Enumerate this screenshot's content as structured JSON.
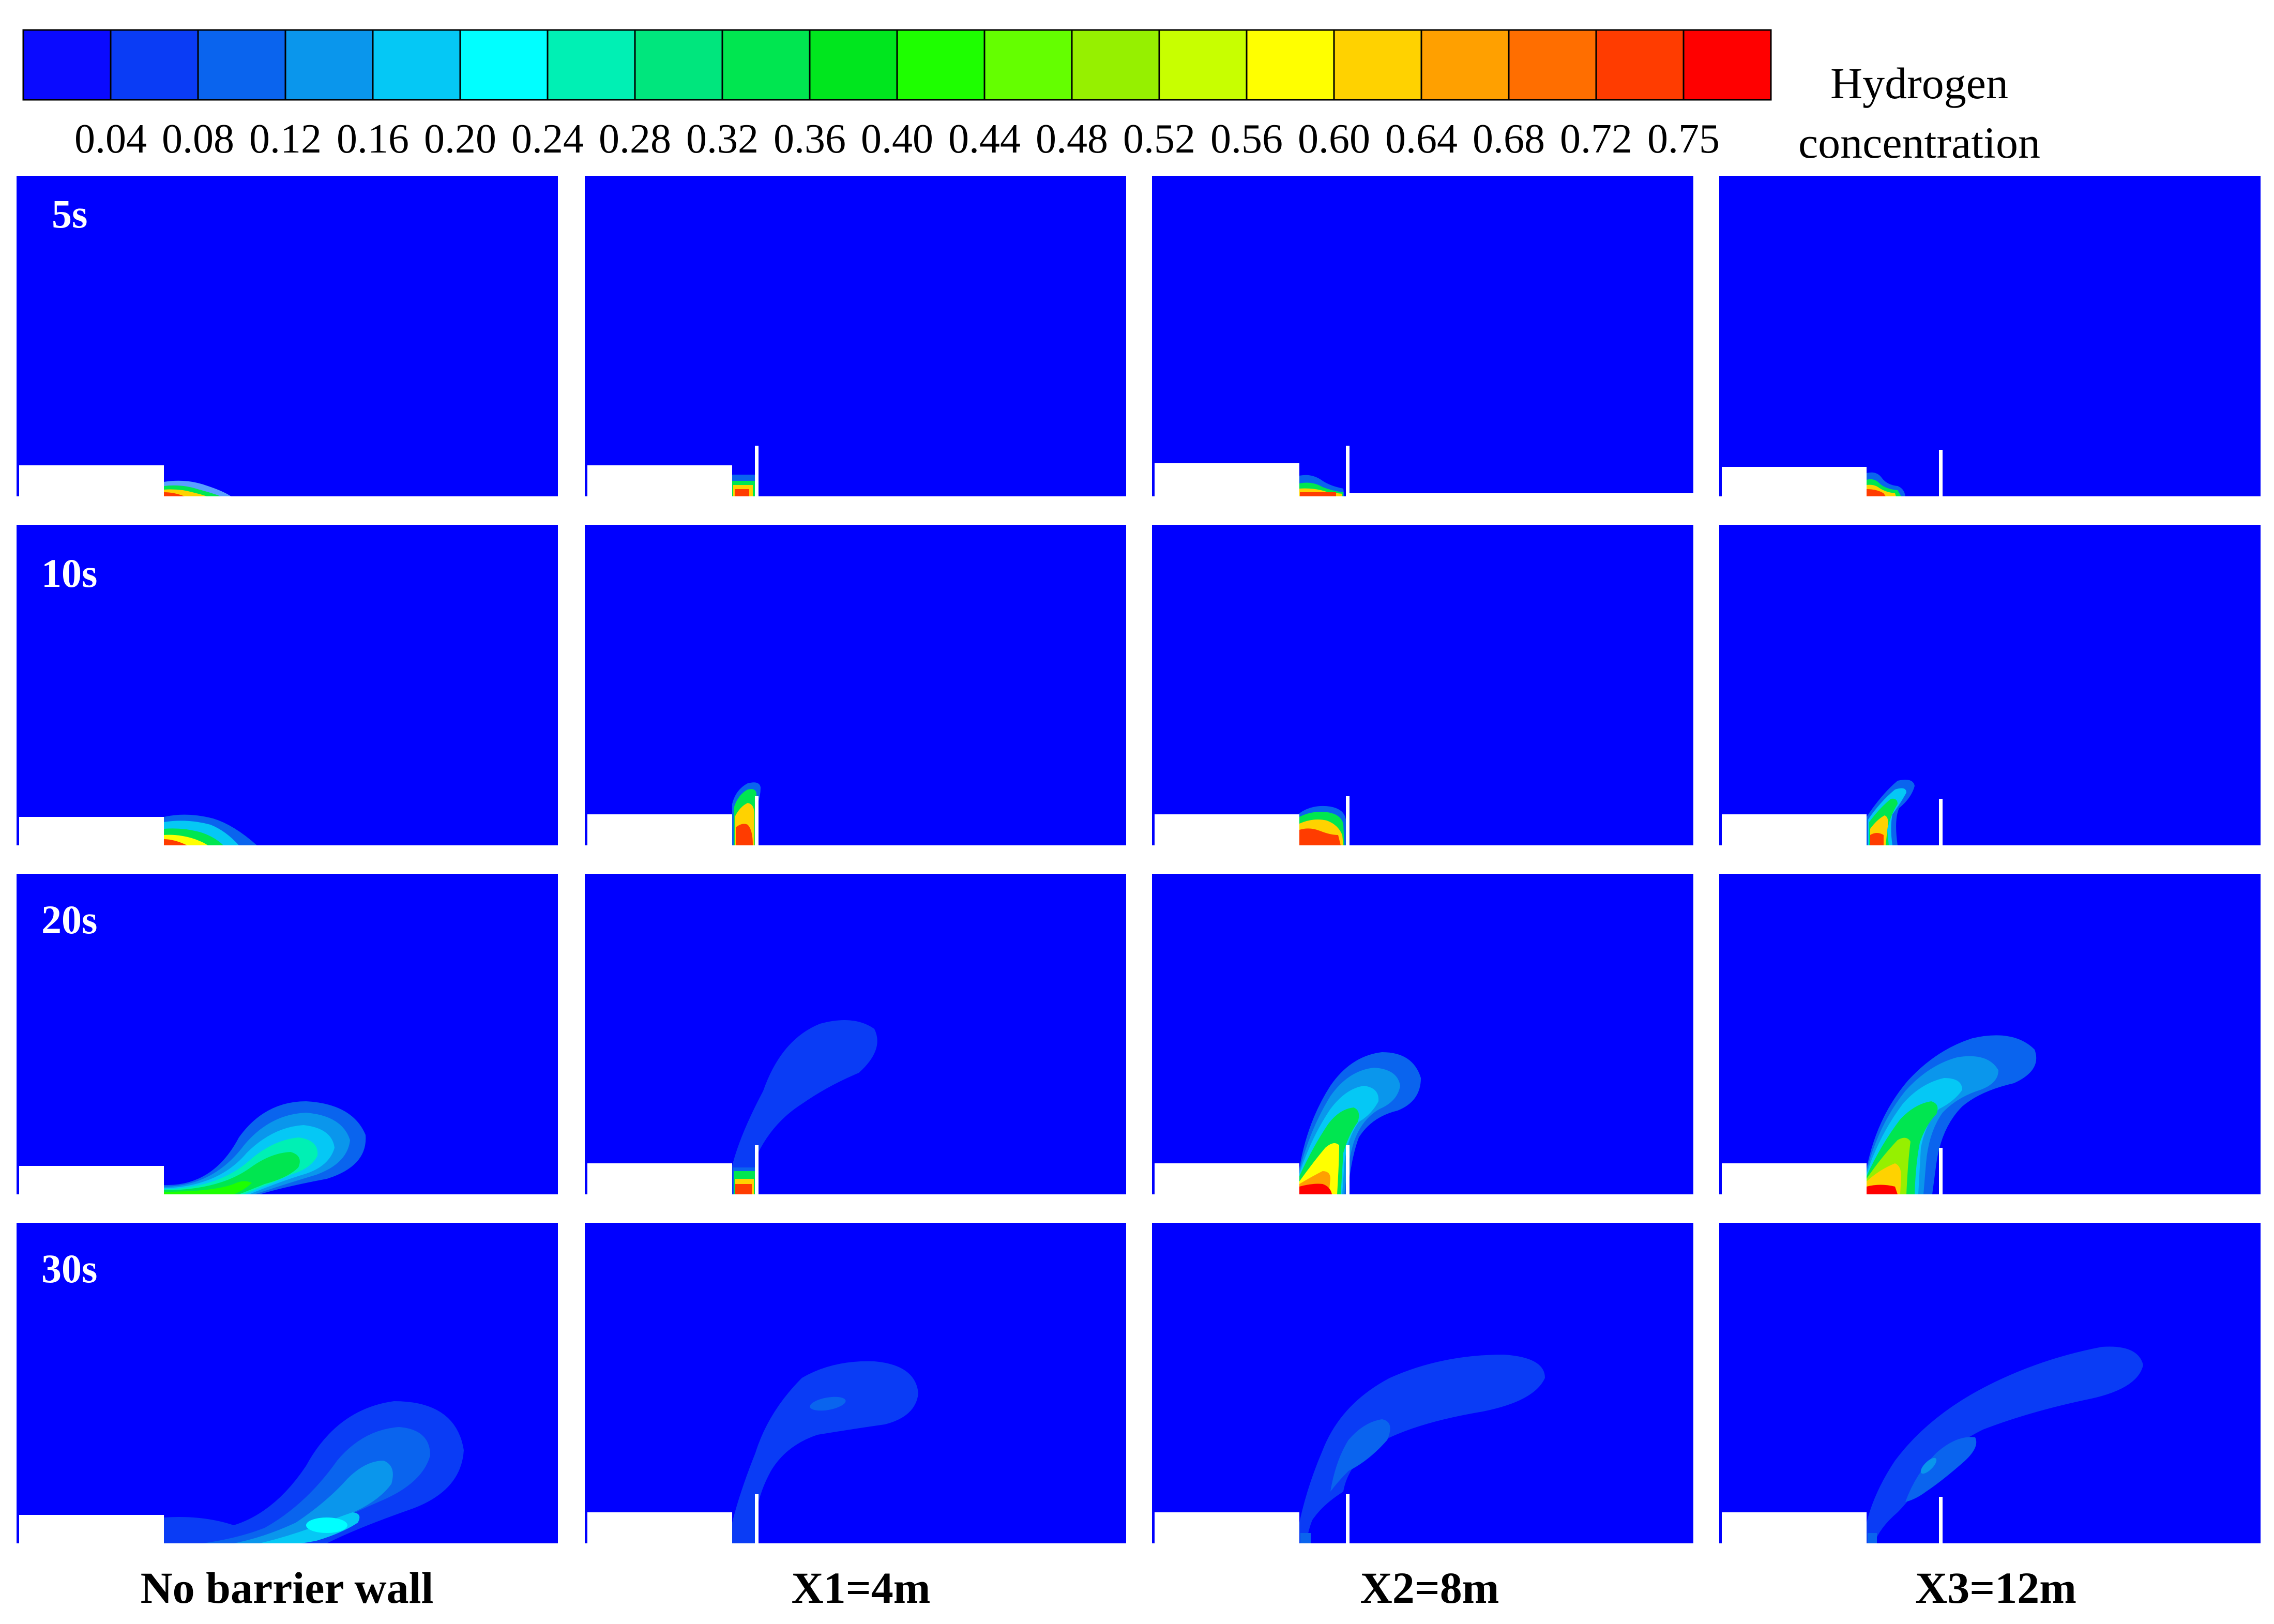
{
  "colorbar": {
    "title_line1": "Hydrogen",
    "title_line2": "concentration",
    "colors": [
      "#0a0aff",
      "#0a3cf5",
      "#0a64ee",
      "#0a96ec",
      "#05c8f5",
      "#00ffff",
      "#00f0b4",
      "#00e67d",
      "#00e650",
      "#00e61e",
      "#1eff00",
      "#64ff00",
      "#96f000",
      "#c8ff00",
      "#ffff00",
      "#ffd200",
      "#ffa000",
      "#ff6e00",
      "#ff3c00",
      "#ff0000"
    ],
    "tick_labels": [
      "0.04",
      "0.08",
      "0.12",
      "0.16",
      "0.20",
      "0.24",
      "0.28",
      "0.32",
      "0.36",
      "0.40",
      "0.44",
      "0.48",
      "0.52",
      "0.56",
      "0.60",
      "0.64",
      "0.68",
      "0.72",
      "0.75"
    ]
  },
  "rows": [
    {
      "time": "5s"
    },
    {
      "time": "10s"
    },
    {
      "time": "20s"
    },
    {
      "time": "30s"
    }
  ],
  "columns": [
    {
      "label": "No barrier wall",
      "wall_position_m": null
    },
    {
      "label": "X1=4m",
      "wall_position_m": 4
    },
    {
      "label": "X2=8m",
      "wall_position_m": 8
    },
    {
      "label": "X3=12m",
      "wall_position_m": 12
    }
  ],
  "background_color": "#0000ff"
}
